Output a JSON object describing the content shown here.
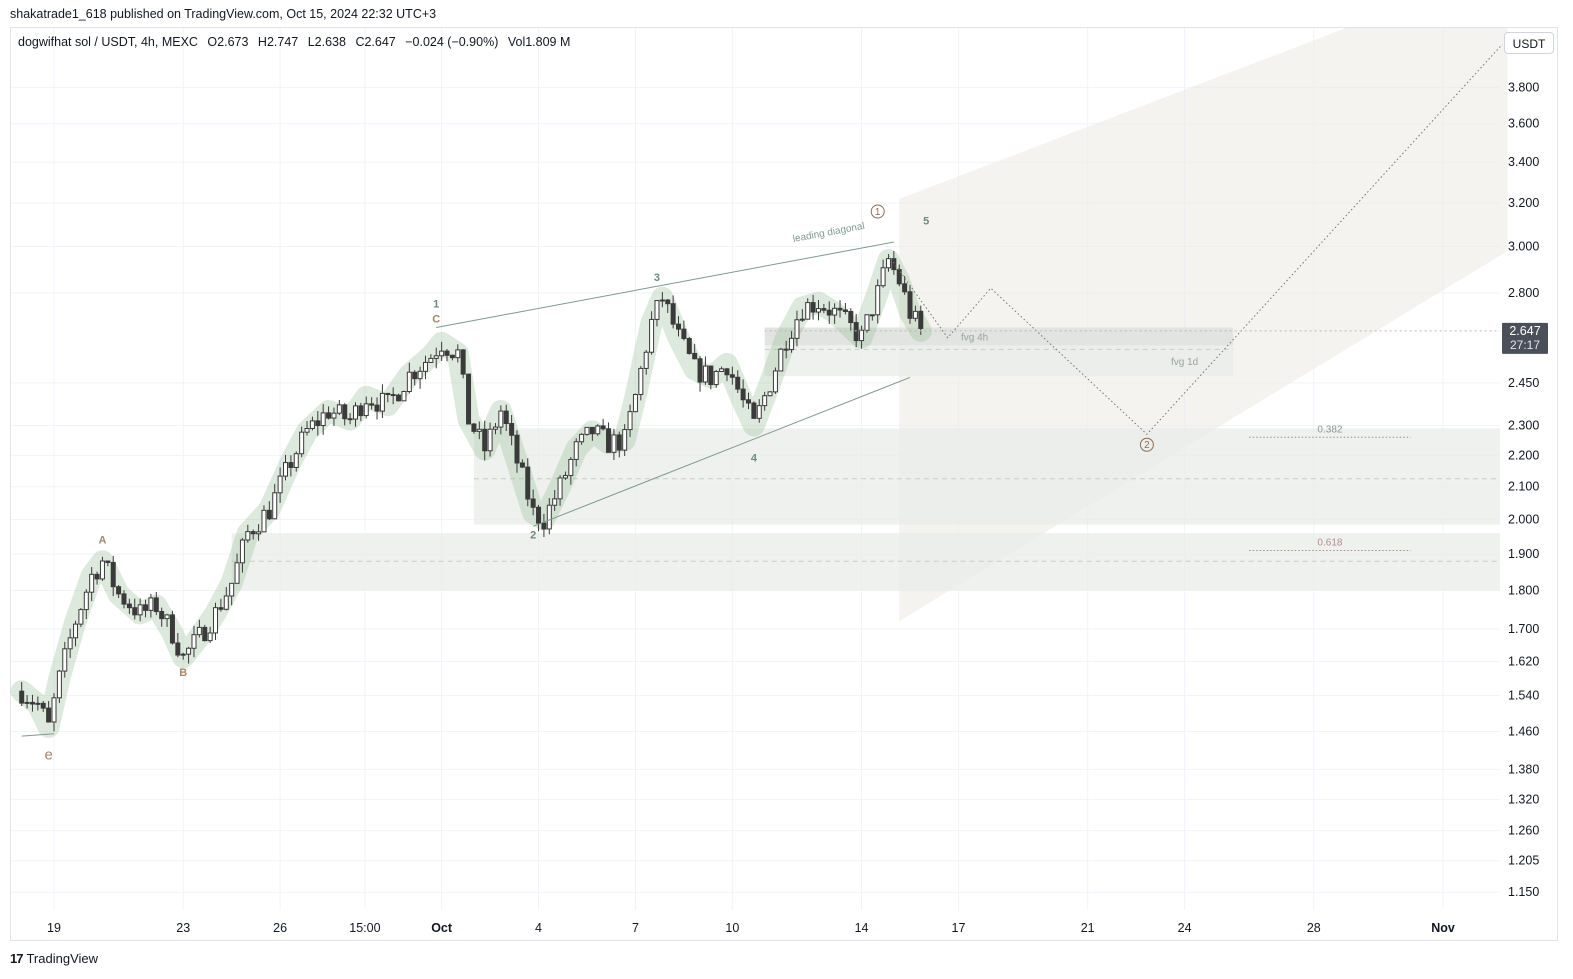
{
  "publisher": "shakatrade1_618 published on TradingView.com, Oct 15, 2024 22:32 UTC+3",
  "legend": {
    "symbol": "dogwifhat sol / USDT, 4h, MEXC",
    "open": "O2.673",
    "high": "H2.747",
    "low": "L2.638",
    "close": "C2.647",
    "change": "−0.024 (−0.90%)",
    "volume": "Vol1.809 M"
  },
  "currency": "USDT",
  "footer_brand": "TradingView",
  "colors": {
    "candle": "#3a3a3a",
    "highlight": "#9dbf9a",
    "wave_line": "#7e9a8e",
    "zone": "#e9ece9",
    "forecast": "#ecebe6",
    "badge_bg": "#4a4f5a",
    "label_brown": "#a4876a",
    "fib_618": "#b48b8b"
  },
  "chart_data": {
    "type": "candlestick",
    "interval": "4h",
    "y_scale": "log",
    "ylim": [
      1.12,
      4.15
    ],
    "y_ticks": [
      3.8,
      3.6,
      3.4,
      3.2,
      3.0,
      2.8,
      2.45,
      2.3,
      2.2,
      2.1,
      2.0,
      1.9,
      1.8,
      1.7,
      1.62,
      1.54,
      1.46,
      1.38,
      1.32,
      1.26,
      1.205,
      1.15
    ],
    "y_tick_labels": [
      "3.800",
      "3.600",
      "3.400",
      "3.200",
      "3.000",
      "2.800",
      "2.450",
      "2.300",
      "2.200",
      "2.100",
      "2.000",
      "1.900",
      "1.800",
      "1.700",
      "1.620",
      "1.540",
      "1.460",
      "1.380",
      "1.320",
      "1.260",
      "1.205",
      "1.150"
    ],
    "x_ticks": [
      {
        "t": "2024-09-19",
        "label": "19"
      },
      {
        "t": "2024-09-23",
        "label": "23"
      },
      {
        "t": "2024-09-26",
        "label": "26"
      },
      {
        "t": "2024-09-28 15:00",
        "label": "15:00"
      },
      {
        "t": "2024-10-01",
        "label": "Oct"
      },
      {
        "t": "2024-10-04",
        "label": "4"
      },
      {
        "t": "2024-10-07",
        "label": "7"
      },
      {
        "t": "2024-10-10",
        "label": "10"
      },
      {
        "t": "2024-10-14",
        "label": "14"
      },
      {
        "t": "2024-10-17",
        "label": "17"
      },
      {
        "t": "2024-10-21",
        "label": "21"
      },
      {
        "t": "2024-10-24",
        "label": "24"
      },
      {
        "t": "2024-10-28",
        "label": "28"
      },
      {
        "t": "2024-11-01",
        "label": "Nov"
      }
    ],
    "price_path": [
      [
        "2024-09-18 00:00",
        1.55
      ],
      [
        "2024-09-18 12:00",
        1.52
      ],
      [
        "2024-09-18 20:00",
        1.47
      ],
      [
        "2024-09-19 04:00",
        1.58
      ],
      [
        "2024-09-19 16:00",
        1.72
      ],
      [
        "2024-09-20 04:00",
        1.84
      ],
      [
        "2024-09-20 12:00",
        1.88
      ],
      [
        "2024-09-21 00:00",
        1.79
      ],
      [
        "2024-09-21 16:00",
        1.74
      ],
      [
        "2024-09-22 04:00",
        1.76
      ],
      [
        "2024-09-22 16:00",
        1.69
      ],
      [
        "2024-09-23 00:00",
        1.63
      ],
      [
        "2024-09-23 12:00",
        1.68
      ],
      [
        "2024-09-24 00:00",
        1.74
      ],
      [
        "2024-09-24 12:00",
        1.82
      ],
      [
        "2024-09-25 00:00",
        1.96
      ],
      [
        "2024-09-25 16:00",
        2.03
      ],
      [
        "2024-09-26 08:00",
        2.18
      ],
      [
        "2024-09-26 20:00",
        2.28
      ],
      [
        "2024-09-27 12:00",
        2.35
      ],
      [
        "2024-09-28 04:00",
        2.32
      ],
      [
        "2024-09-28 16:00",
        2.4
      ],
      [
        "2024-09-29 08:00",
        2.37
      ],
      [
        "2024-09-30 00:00",
        2.48
      ],
      [
        "2024-09-30 16:00",
        2.55
      ],
      [
        "2024-10-01 00:00",
        2.6
      ],
      [
        "2024-10-01 12:00",
        2.56
      ],
      [
        "2024-10-01 20:00",
        2.32
      ],
      [
        "2024-10-02 08:00",
        2.22
      ],
      [
        "2024-10-02 20:00",
        2.35
      ],
      [
        "2024-10-03 08:00",
        2.18
      ],
      [
        "2024-10-03 20:00",
        2.02
      ],
      [
        "2024-10-04 04:00",
        2.0
      ],
      [
        "2024-10-04 16:00",
        2.1
      ],
      [
        "2024-10-05 04:00",
        2.22
      ],
      [
        "2024-10-05 16:00",
        2.28
      ],
      [
        "2024-10-06 04:00",
        2.24
      ],
      [
        "2024-10-06 16:00",
        2.25
      ],
      [
        "2024-10-07 00:00",
        2.4
      ],
      [
        "2024-10-07 12:00",
        2.68
      ],
      [
        "2024-10-07 20:00",
        2.78
      ],
      [
        "2024-10-08 08:00",
        2.62
      ],
      [
        "2024-10-08 20:00",
        2.5
      ],
      [
        "2024-10-09 08:00",
        2.47
      ],
      [
        "2024-10-09 20:00",
        2.52
      ],
      [
        "2024-10-10 08:00",
        2.38
      ],
      [
        "2024-10-10 16:00",
        2.3
      ],
      [
        "2024-10-11 04:00",
        2.45
      ],
      [
        "2024-10-11 16:00",
        2.62
      ],
      [
        "2024-10-12 04:00",
        2.74
      ],
      [
        "2024-10-12 16:00",
        2.76
      ],
      [
        "2024-10-13 04:00",
        2.72
      ],
      [
        "2024-10-13 16:00",
        2.66
      ],
      [
        "2024-10-14 00:00",
        2.62
      ],
      [
        "2024-10-14 12:00",
        2.8
      ],
      [
        "2024-10-14 20:00",
        2.94
      ],
      [
        "2024-10-15 04:00",
        2.85
      ],
      [
        "2024-10-15 12:00",
        2.72
      ],
      [
        "2024-10-15 20:00",
        2.647
      ]
    ],
    "last_price": "2.647",
    "countdown": "27:17",
    "wave_labels": [
      {
        "text": "e",
        "t": "2024-09-18 20:00",
        "v": 1.4,
        "tone": "brown"
      },
      {
        "text": "A",
        "t": "2024-09-20 12:00",
        "v": 1.93,
        "tone": "brown"
      },
      {
        "text": "B",
        "t": "2024-09-23 00:00",
        "v": 1.585,
        "tone": "brown"
      },
      {
        "text": "1",
        "t": "2024-09-30 20:00",
        "v": 2.74,
        "tone": "green"
      },
      {
        "text": "C",
        "t": "2024-09-30 20:00",
        "v": 2.68,
        "tone": "brown"
      },
      {
        "text": "2",
        "t": "2024-10-03 20:00",
        "v": 1.945,
        "tone": "green"
      },
      {
        "text": "3",
        "t": "2024-10-07 16:00",
        "v": 2.85,
        "tone": "green"
      },
      {
        "text": "4",
        "t": "2024-10-10 16:00",
        "v": 2.18,
        "tone": "green"
      },
      {
        "text": "5",
        "t": "2024-10-16 00:00",
        "v": 3.1,
        "tone": "green"
      }
    ],
    "circled_labels": [
      {
        "text": "1",
        "t": "2024-10-14 12:00",
        "v": 3.16
      },
      {
        "text": "2",
        "t": "2024-10-22 20:00",
        "v": 2.235
      }
    ],
    "wedge_upper": [
      [
        "2024-09-30 20:00",
        2.66
      ],
      [
        "2024-10-15 00:00",
        3.02
      ]
    ],
    "wedge_lower": [
      [
        "2024-10-03 20:00",
        1.98
      ],
      [
        "2024-10-15 12:00",
        2.47
      ]
    ],
    "wedge_label": "leading diagonal",
    "zones": [
      {
        "name": "fvg 4h",
        "t0": "2024-10-11 00:00",
        "t1": "2024-10-25 12:00",
        "v0": 2.59,
        "v1": 2.66,
        "label_t": "2024-10-17 12:00"
      },
      {
        "name": "fvg 1d",
        "t0": "2024-10-11 00:00",
        "t1": "2024-10-25 12:00",
        "v0": 2.475,
        "v1": 2.59,
        "mid": 2.575,
        "label_t": "2024-10-24 00:00"
      },
      {
        "name": "",
        "t0": "2024-10-02 00:00",
        "t1": "2024-11-03 00:00",
        "v0": 1.985,
        "v1": 2.29,
        "mid": 2.125
      },
      {
        "name": "",
        "t0": "2024-09-24 12:00",
        "t1": "2024-11-03 00:00",
        "v0": 1.8,
        "v1": 1.96,
        "mid": 1.88
      }
    ],
    "fib_levels": [
      {
        "label": "0.382",
        "v": 2.26,
        "t0": "2024-10-26 00:00",
        "t1": "2024-10-31 00:00"
      },
      {
        "label": "0.618",
        "v": 1.91,
        "t0": "2024-10-26 00:00",
        "t1": "2024-10-31 00:00"
      }
    ],
    "projection_path": [
      [
        "2024-10-14 20:00",
        2.96
      ],
      [
        "2024-10-16 16:00",
        2.62
      ],
      [
        "2024-10-18 00:00",
        2.82
      ],
      [
        "2024-10-22 20:00",
        2.27
      ],
      [
        "2024-11-02 20:00",
        4.05
      ]
    ],
    "forecast_polygon": [
      [
        "2024-10-15 04:00",
        3.22
      ],
      [
        "2024-10-15 04:00",
        1.72
      ],
      [
        "2024-11-03 00:00",
        2.98
      ],
      [
        "2024-11-03 00:00",
        4.15
      ],
      [
        "2024-10-29 00:00",
        4.15
      ]
    ]
  }
}
